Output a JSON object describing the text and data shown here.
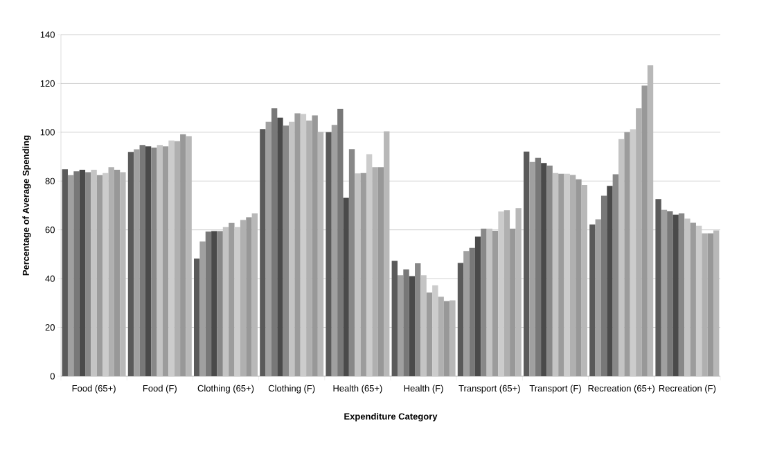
{
  "chart_data": {
    "type": "bar",
    "xlabel": "Expenditure Category",
    "ylabel": "Percentage of Average Spending",
    "categories": [
      "Food (65+)",
      "Food (F)",
      "Clothing (65+)",
      "Clothing (F)",
      "Health (65+)",
      "Health (F)",
      "Transport (65+)",
      "Transport (F)",
      "Recreation (65+)",
      "Recreation (F)"
    ],
    "ylim": [
      0,
      140
    ],
    "yticks": [
      0,
      20,
      40,
      60,
      80,
      100,
      120,
      140
    ],
    "grid": "y",
    "series": [
      {
        "color": "#5a5a5a",
        "values": [
          84.8,
          91.9,
          48.2,
          101.3,
          100.0,
          47.3,
          46.4,
          92.1,
          62.2,
          72.6
        ]
      },
      {
        "color": "#a0a0a0",
        "values": [
          82.4,
          93.0,
          55.2,
          104.3,
          103.0,
          41.4,
          51.3,
          87.8,
          64.3,
          68.2
        ]
      },
      {
        "color": "#787878",
        "values": [
          84.0,
          94.8,
          59.3,
          109.8,
          109.6,
          43.8,
          52.6,
          89.5,
          74.0,
          67.6
        ]
      },
      {
        "color": "#4a4a4a",
        "values": [
          84.6,
          94.2,
          59.5,
          106.0,
          73.1,
          41.0,
          57.2,
          87.4,
          78.0,
          66.2
        ]
      },
      {
        "color": "#888888",
        "values": [
          83.6,
          93.7,
          59.5,
          102.7,
          93.1,
          46.3,
          60.5,
          86.3,
          82.8,
          66.7
        ]
      },
      {
        "color": "#c4c4c4",
        "values": [
          84.6,
          94.8,
          61.1,
          104.3,
          83.1,
          41.4,
          60.5,
          83.3,
          97.2,
          64.6
        ]
      },
      {
        "color": "#9c9c9c",
        "values": [
          82.4,
          94.2,
          62.8,
          107.8,
          83.3,
          34.3,
          59.6,
          83.0,
          100.0,
          62.9
        ]
      },
      {
        "color": "#cccccc",
        "values": [
          83.3,
          96.6,
          61.1,
          107.5,
          91.0,
          37.3,
          67.5,
          83.0,
          101.2,
          61.7
        ]
      },
      {
        "color": "#b0b0b0",
        "values": [
          85.7,
          96.3,
          64.0,
          104.8,
          85.7,
          32.6,
          68.1,
          82.5,
          109.8,
          58.6
        ]
      },
      {
        "color": "#989898",
        "values": [
          84.6,
          99.2,
          65.2,
          106.9,
          85.7,
          30.8,
          60.5,
          80.7,
          119.1,
          58.6
        ]
      },
      {
        "color": "#b8b8b8",
        "values": [
          83.6,
          98.4,
          66.7,
          100.1,
          100.4,
          31.1,
          68.9,
          78.4,
          127.4,
          59.8
        ]
      }
    ]
  }
}
